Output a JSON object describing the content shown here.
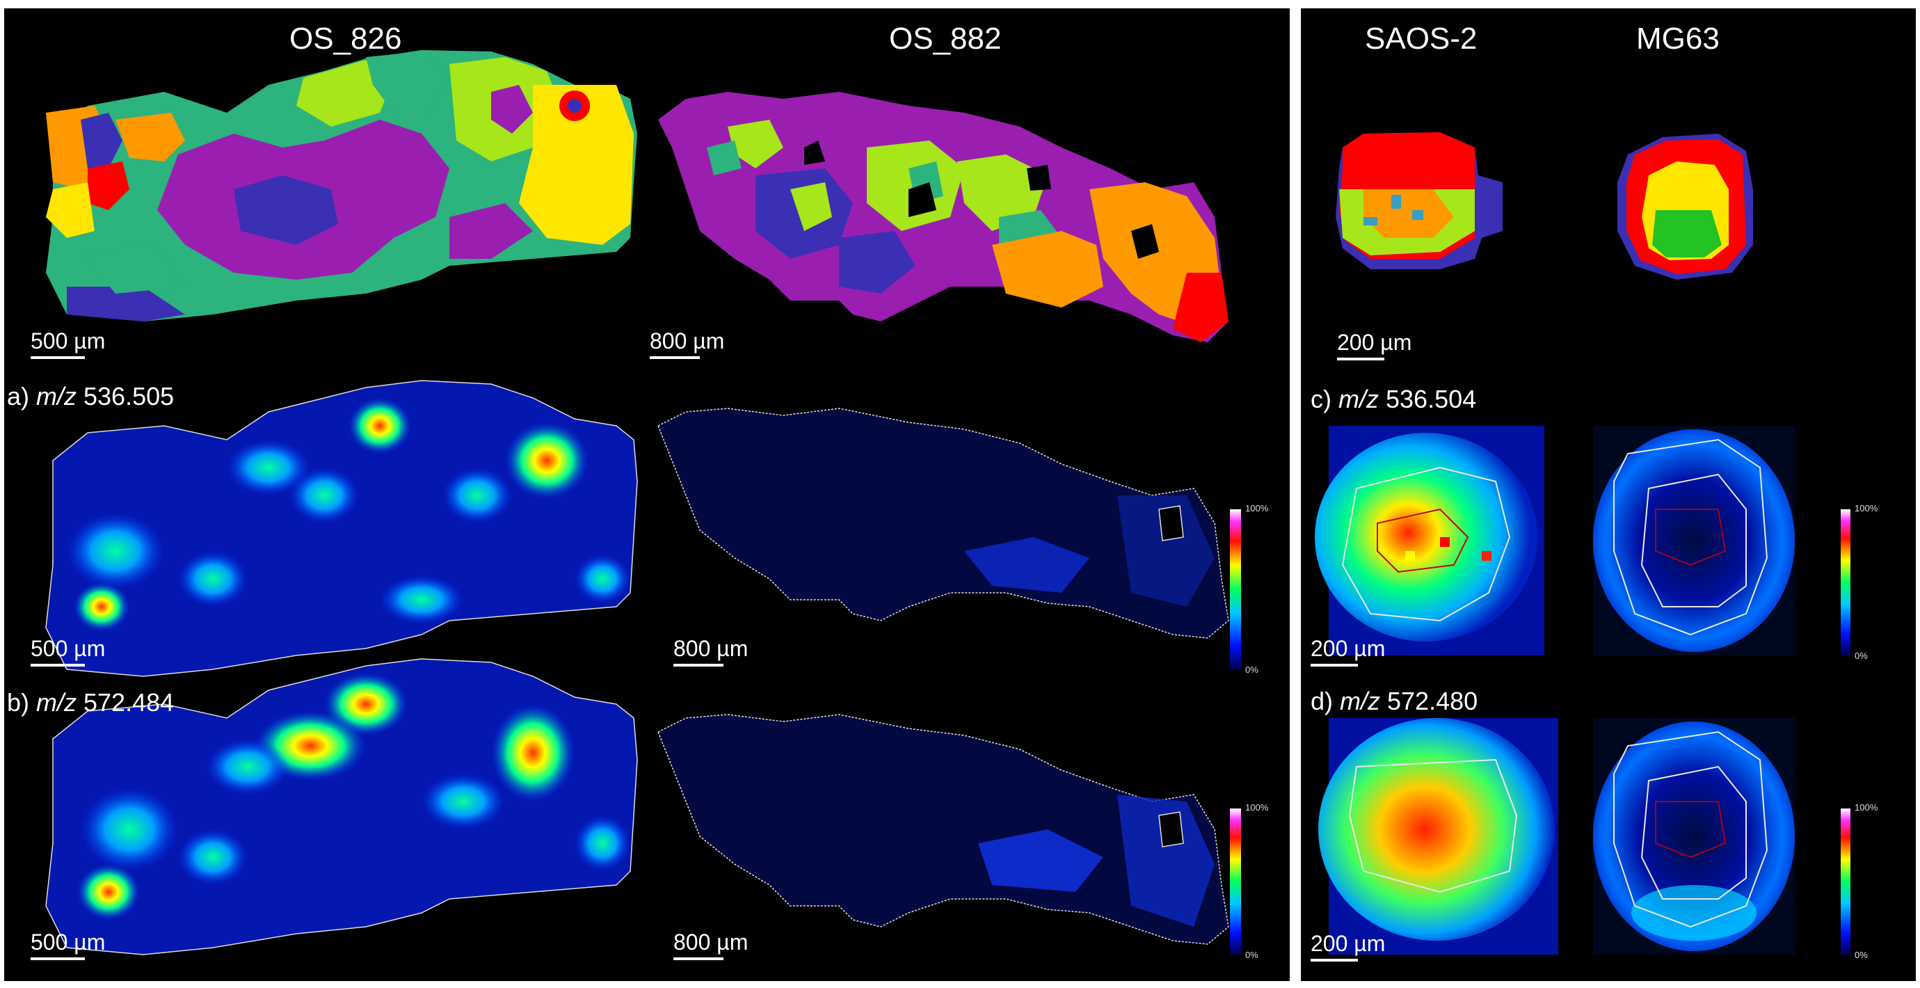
{
  "left": {
    "samples": [
      "OS_826",
      "OS_882"
    ],
    "rows": [
      {
        "prefix": "a) ",
        "mz": "m/z",
        "value": " 536.505"
      },
      {
        "prefix": "b) ",
        "mz": "m/z",
        "value": " 572.484"
      }
    ],
    "scale_bars": {
      "os826": "500 µm",
      "os882": "800 µm"
    }
  },
  "right": {
    "samples": [
      "SAOS-2",
      "MG63"
    ],
    "rows": [
      {
        "prefix": "c) ",
        "mz": "m/z",
        "value": " 536.504"
      },
      {
        "prefix": "d) ",
        "mz": "m/z",
        "value": " 572.480"
      }
    ],
    "scale_bar": "200 µm"
  },
  "colorbar": {
    "max": "100%",
    "min": "0%"
  },
  "cluster_colors": [
    "#ff0000",
    "#ff9900",
    "#ffe600",
    "#a6e61a",
    "#2db37d",
    "#9a1fb0",
    "#3b2fb4",
    "#22c322"
  ],
  "heatmap_colors": [
    "#000030",
    "#0010ff",
    "#00a0ff",
    "#00ff80",
    "#ffff00",
    "#ff2000",
    "#ff40ff",
    "#ffffff"
  ]
}
